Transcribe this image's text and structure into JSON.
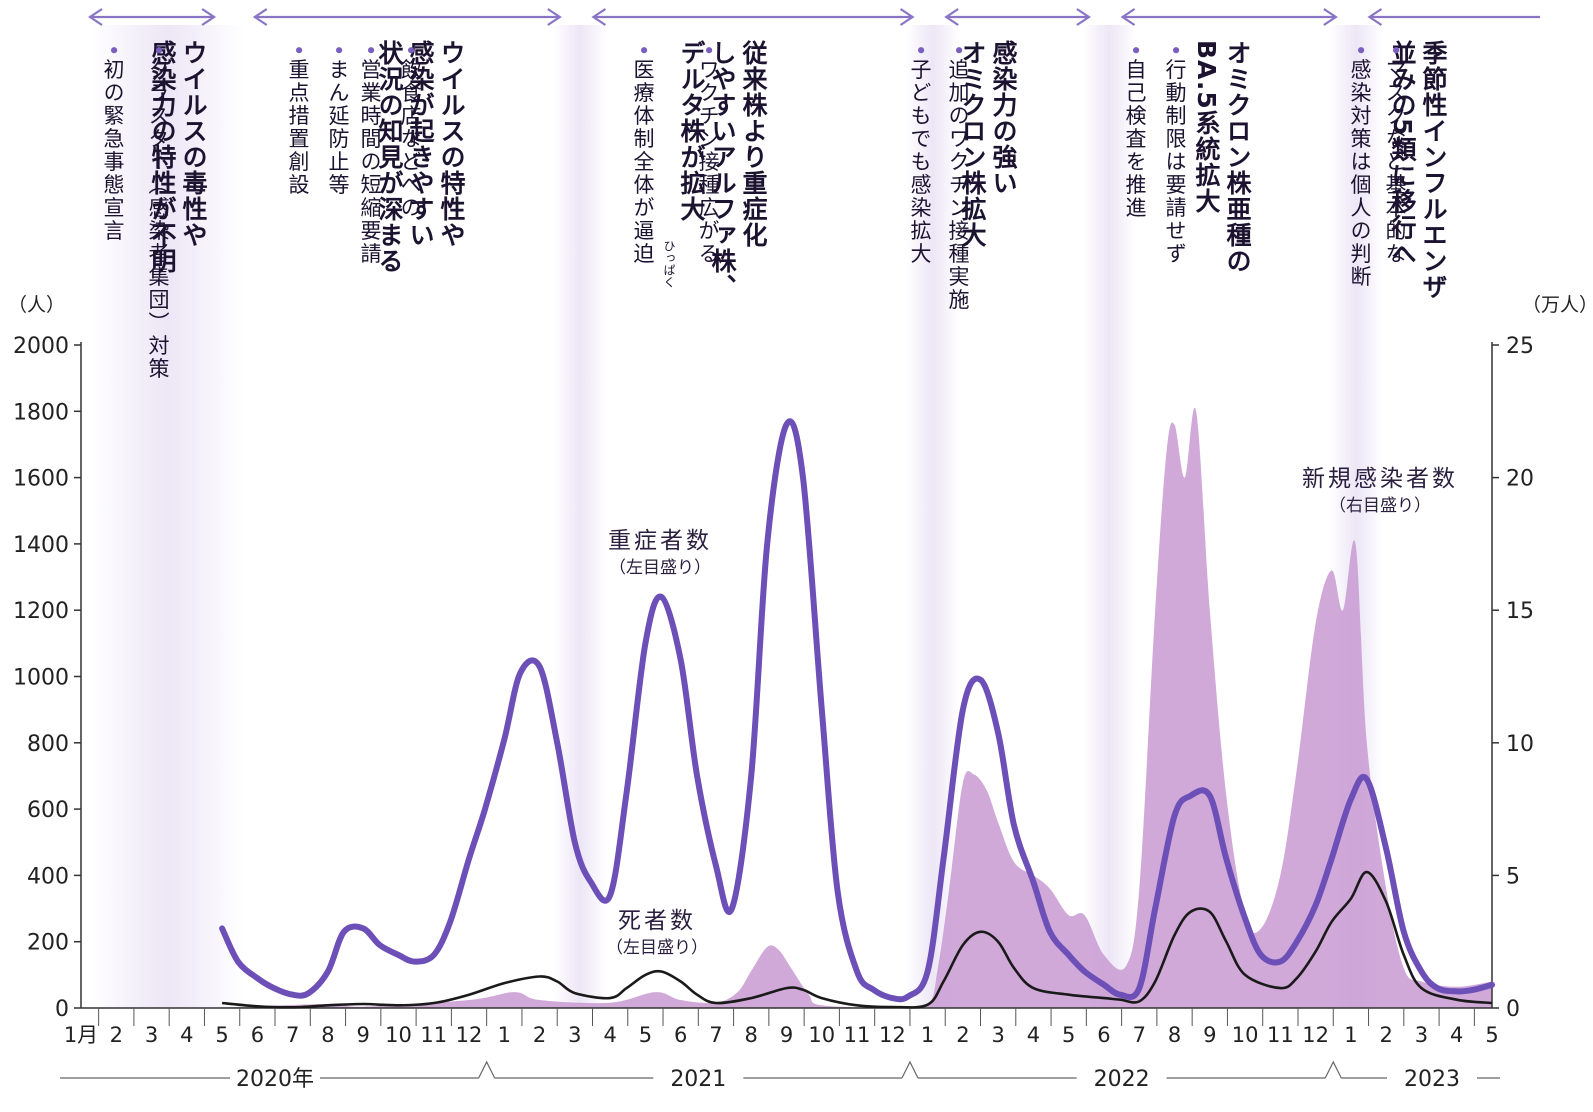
{
  "periods": [
    {
      "heading": [
        "ウイルスの毒性や",
        "感染力の特性が不明"
      ],
      "bullets": [
        "クラスター（感染者集団）対策",
        "初の緊急事態宣言"
      ]
    },
    {
      "heading": [
        "ウイルスの特性や",
        "感染が起きやすい",
        "状況の知見が深まる"
      ],
      "bullets": [
        "飲食店などへの",
        "営業時間の短縮要請",
        "まん延防止等",
        "重点措置創設"
      ]
    },
    {
      "heading": [
        "従来株より重症化",
        "しやすいアルファ株、",
        "デルタ株が拡大"
      ],
      "bullets": [
        "ワクチン接種広がる",
        "医療体制全体が逼迫"
      ]
    },
    {
      "heading": [
        "感染力の強い",
        "オミクロン株拡大"
      ],
      "bullets": [
        "追加のワクチン接種実施",
        "子どもでも感染拡大"
      ]
    },
    {
      "heading": [
        "オミクロン株亜種の",
        "BA.5系統拡大"
      ],
      "bullets": [
        "行動制限は要請せず",
        "自己検査を推進"
      ]
    },
    {
      "heading": [
        "季節性インフルエンザ",
        "並みの5類に移行へ"
      ],
      "bullets": [
        "マスクなど基本的な",
        "感染対策は個人の判断"
      ]
    }
  ],
  "ruby": "ひっぱく",
  "labels": {
    "severe": "重症者数",
    "severe_note": "（左目盛り）",
    "deaths": "死者数",
    "deaths_note": "（左目盛り）",
    "cases": "新規感染者数",
    "cases_note": "（右目盛り）"
  },
  "axes": {
    "left_unit": "（人）",
    "right_unit": "（万人）"
  },
  "colors": {
    "severe": "#6d4fb8",
    "deaths": "#1a1a1a",
    "cases": "#c89ad2",
    "band": "#ece6f6",
    "arrow": "#8a74c6"
  },
  "chart_data": {
    "type": "line",
    "x_unit": "month",
    "x_range": [
      "2020-01",
      "2023-05"
    ],
    "month_ticks": [
      "1月",
      "2",
      "3",
      "4",
      "5",
      "6",
      "7",
      "8",
      "9",
      "10",
      "11",
      "12",
      "1",
      "2",
      "3",
      "4",
      "5",
      "6",
      "7",
      "8",
      "9",
      "10",
      "11",
      "12",
      "1",
      "2",
      "3",
      "4",
      "5",
      "6",
      "7",
      "8",
      "9",
      "10",
      "11",
      "12",
      "1",
      "2",
      "3",
      "4",
      "5"
    ],
    "years": [
      "2020年",
      "2021",
      "2022",
      "2023"
    ],
    "y_left": {
      "min": 0,
      "max": 2000,
      "ticks": [
        0,
        200,
        400,
        600,
        800,
        1000,
        1200,
        1400,
        1600,
        1800,
        2000
      ],
      "unit": "人"
    },
    "y_right": {
      "min": 0,
      "max": 25,
      "ticks": [
        0,
        5,
        10,
        15,
        20,
        25
      ],
      "unit": "万人"
    },
    "grid": false,
    "series": [
      {
        "name": "重症者数",
        "axis": "left",
        "style": "line",
        "points": [
          [
            "2020-05-01",
            240
          ],
          [
            "2020-05-15",
            140
          ],
          [
            "2020-06-01",
            90
          ],
          [
            "2020-06-15",
            60
          ],
          [
            "2020-07-01",
            40
          ],
          [
            "2020-07-15",
            45
          ],
          [
            "2020-08-01",
            110
          ],
          [
            "2020-08-15",
            230
          ],
          [
            "2020-09-01",
            240
          ],
          [
            "2020-09-15",
            190
          ],
          [
            "2020-10-01",
            160
          ],
          [
            "2020-10-15",
            140
          ],
          [
            "2020-11-01",
            160
          ],
          [
            "2020-11-15",
            260
          ],
          [
            "2020-12-01",
            450
          ],
          [
            "2020-12-15",
            600
          ],
          [
            "2021-01-01",
            810
          ],
          [
            "2021-01-15",
            1010
          ],
          [
            "2021-02-01",
            1030
          ],
          [
            "2021-02-15",
            800
          ],
          [
            "2021-03-01",
            500
          ],
          [
            "2021-03-15",
            380
          ],
          [
            "2021-04-01",
            340
          ],
          [
            "2021-04-15",
            650
          ],
          [
            "2021-05-01",
            1100
          ],
          [
            "2021-05-15",
            1240
          ],
          [
            "2021-06-01",
            1050
          ],
          [
            "2021-06-15",
            700
          ],
          [
            "2021-07-01",
            430
          ],
          [
            "2021-07-15",
            300
          ],
          [
            "2021-08-01",
            700
          ],
          [
            "2021-08-15",
            1400
          ],
          [
            "2021-09-01",
            1760
          ],
          [
            "2021-09-15",
            1600
          ],
          [
            "2021-10-01",
            900
          ],
          [
            "2021-10-15",
            350
          ],
          [
            "2021-11-01",
            110
          ],
          [
            "2021-11-15",
            55
          ],
          [
            "2021-12-01",
            30
          ],
          [
            "2021-12-15",
            35
          ],
          [
            "2022-01-01",
            110
          ],
          [
            "2022-01-15",
            450
          ],
          [
            "2022-02-01",
            900
          ],
          [
            "2022-02-15",
            990
          ],
          [
            "2022-03-01",
            830
          ],
          [
            "2022-03-15",
            550
          ],
          [
            "2022-04-01",
            380
          ],
          [
            "2022-04-15",
            230
          ],
          [
            "2022-05-01",
            160
          ],
          [
            "2022-05-15",
            110
          ],
          [
            "2022-06-01",
            70
          ],
          [
            "2022-06-15",
            40
          ],
          [
            "2022-07-01",
            60
          ],
          [
            "2022-07-15",
            300
          ],
          [
            "2022-08-01",
            580
          ],
          [
            "2022-08-15",
            640
          ],
          [
            "2022-09-01",
            640
          ],
          [
            "2022-09-15",
            450
          ],
          [
            "2022-10-01",
            270
          ],
          [
            "2022-10-15",
            160
          ],
          [
            "2022-11-01",
            140
          ],
          [
            "2022-11-15",
            200
          ],
          [
            "2022-12-01",
            310
          ],
          [
            "2022-12-15",
            450
          ],
          [
            "2023-01-01",
            630
          ],
          [
            "2023-01-15",
            690
          ],
          [
            "2023-02-01",
            480
          ],
          [
            "2023-02-15",
            230
          ],
          [
            "2023-03-01",
            110
          ],
          [
            "2023-03-15",
            60
          ],
          [
            "2023-04-01",
            50
          ],
          [
            "2023-04-15",
            55
          ],
          [
            "2023-05-01",
            70
          ]
        ]
      },
      {
        "name": "死者数",
        "axis": "left",
        "style": "line",
        "points": [
          [
            "2020-05-01",
            15
          ],
          [
            "2020-06-01",
            5
          ],
          [
            "2020-07-01",
            2
          ],
          [
            "2020-08-01",
            8
          ],
          [
            "2020-09-01",
            12
          ],
          [
            "2020-10-01",
            8
          ],
          [
            "2020-11-01",
            15
          ],
          [
            "2020-12-01",
            40
          ],
          [
            "2021-01-01",
            75
          ],
          [
            "2021-02-01",
            95
          ],
          [
            "2021-02-15",
            80
          ],
          [
            "2021-03-01",
            45
          ],
          [
            "2021-04-01",
            30
          ],
          [
            "2021-04-15",
            60
          ],
          [
            "2021-05-01",
            100
          ],
          [
            "2021-05-15",
            110
          ],
          [
            "2021-06-01",
            80
          ],
          [
            "2021-06-15",
            40
          ],
          [
            "2021-07-01",
            15
          ],
          [
            "2021-08-01",
            30
          ],
          [
            "2021-09-01",
            60
          ],
          [
            "2021-09-15",
            55
          ],
          [
            "2021-10-01",
            30
          ],
          [
            "2021-11-01",
            8
          ],
          [
            "2021-12-01",
            3
          ],
          [
            "2022-01-01",
            10
          ],
          [
            "2022-01-15",
            80
          ],
          [
            "2022-02-01",
            190
          ],
          [
            "2022-02-15",
            230
          ],
          [
            "2022-03-01",
            200
          ],
          [
            "2022-03-15",
            120
          ],
          [
            "2022-04-01",
            60
          ],
          [
            "2022-05-01",
            40
          ],
          [
            "2022-06-01",
            30
          ],
          [
            "2022-06-15",
            25
          ],
          [
            "2022-07-01",
            20
          ],
          [
            "2022-07-15",
            80
          ],
          [
            "2022-08-01",
            220
          ],
          [
            "2022-08-15",
            290
          ],
          [
            "2022-09-01",
            290
          ],
          [
            "2022-09-15",
            200
          ],
          [
            "2022-10-01",
            100
          ],
          [
            "2022-11-01",
            60
          ],
          [
            "2022-11-15",
            90
          ],
          [
            "2022-12-01",
            170
          ],
          [
            "2022-12-15",
            260
          ],
          [
            "2023-01-01",
            330
          ],
          [
            "2023-01-15",
            410
          ],
          [
            "2023-02-01",
            320
          ],
          [
            "2023-02-15",
            160
          ],
          [
            "2023-03-01",
            60
          ],
          [
            "2023-04-01",
            25
          ],
          [
            "2023-05-01",
            15
          ]
        ]
      },
      {
        "name": "新規感染者数",
        "axis": "right",
        "style": "area",
        "points": [
          [
            "2020-05-01",
            0.02
          ],
          [
            "2020-08-01",
            0.15
          ],
          [
            "2020-09-01",
            0.05
          ],
          [
            "2020-12-01",
            0.3
          ],
          [
            "2021-01-10",
            0.6
          ],
          [
            "2021-02-01",
            0.3
          ],
          [
            "2021-04-01",
            0.2
          ],
          [
            "2021-05-10",
            0.6
          ],
          [
            "2021-06-01",
            0.3
          ],
          [
            "2021-07-01",
            0.2
          ],
          [
            "2021-07-20",
            0.6
          ],
          [
            "2021-08-01",
            1.4
          ],
          [
            "2021-08-15",
            2.3
          ],
          [
            "2021-08-25",
            2.2
          ],
          [
            "2021-09-05",
            1.5
          ],
          [
            "2021-09-20",
            0.5
          ],
          [
            "2021-10-01",
            0.1
          ],
          [
            "2021-12-01",
            0.02
          ],
          [
            "2022-01-01",
            0.1
          ],
          [
            "2022-01-10",
            1.5
          ],
          [
            "2022-01-20",
            4.5
          ],
          [
            "2022-02-01",
            8.5
          ],
          [
            "2022-02-10",
            8.8
          ],
          [
            "2022-02-20",
            8.2
          ],
          [
            "2022-03-01",
            7.0
          ],
          [
            "2022-03-15",
            5.5
          ],
          [
            "2022-04-01",
            5.0
          ],
          [
            "2022-04-15",
            4.5
          ],
          [
            "2022-05-01",
            3.5
          ],
          [
            "2022-05-15",
            3.5
          ],
          [
            "2022-06-01",
            2.0
          ],
          [
            "2022-06-20",
            1.6
          ],
          [
            "2022-07-01",
            4.5
          ],
          [
            "2022-07-15",
            15.0
          ],
          [
            "2022-07-25",
            21.0
          ],
          [
            "2022-08-01",
            22.0
          ],
          [
            "2022-08-10",
            20.0
          ],
          [
            "2022-08-20",
            22.5
          ],
          [
            "2022-09-01",
            15.0
          ],
          [
            "2022-09-15",
            8.0
          ],
          [
            "2022-10-01",
            3.5
          ],
          [
            "2022-10-15",
            3.0
          ],
          [
            "2022-11-01",
            5.0
          ],
          [
            "2022-11-15",
            9.0
          ],
          [
            "2022-12-01",
            14.5
          ],
          [
            "2022-12-15",
            16.5
          ],
          [
            "2022-12-25",
            15.0
          ],
          [
            "2023-01-05",
            17.5
          ],
          [
            "2023-01-15",
            10.0
          ],
          [
            "2023-02-01",
            4.5
          ],
          [
            "2023-02-15",
            1.5
          ],
          [
            "2023-03-01",
            1.0
          ],
          [
            "2023-04-01",
            0.8
          ],
          [
            "2023-05-01",
            1.0
          ]
        ]
      }
    ]
  }
}
